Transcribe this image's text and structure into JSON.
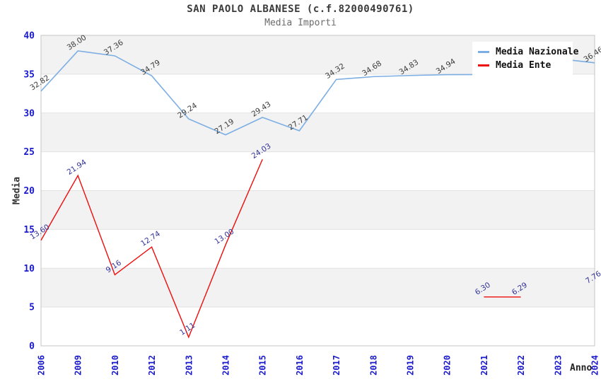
{
  "title": "SAN PAOLO ALBANESE (c.f.82000490761)",
  "subtitle": "Media Importi",
  "chart_data": {
    "type": "line",
    "title": "SAN PAOLO ALBANESE (c.f.82000490761)",
    "subtitle": "Media Importi",
    "xlabel": "Anno",
    "ylabel": "Media",
    "ylim": [
      0,
      40
    ],
    "yticks": [
      0,
      5,
      10,
      15,
      20,
      25,
      30,
      35,
      40
    ],
    "grid": "alternating-horizontal-bands",
    "legend_position": "top-right",
    "categories": [
      "2006",
      "2009",
      "2010",
      "2012",
      "2013",
      "2014",
      "2015",
      "2016",
      "2017",
      "2018",
      "2019",
      "2020",
      "2021",
      "2022",
      "2023",
      "2024"
    ],
    "series": [
      {
        "name": "Media Nazionale",
        "color": "#7caee3",
        "label_color": "#3c3c3c",
        "values": [
          32.82,
          38.0,
          37.36,
          34.79,
          29.24,
          27.19,
          29.43,
          27.71,
          34.32,
          34.68,
          34.83,
          34.94,
          34.95,
          35.0,
          37.0,
          36.46
        ],
        "point_labels": [
          "32.82",
          "38.00",
          "37.36",
          "34.79",
          "29.24",
          "27.19",
          "29.43",
          "27.71",
          "34.32",
          "34.68",
          "34.83",
          "34.94",
          "",
          "",
          "",
          "36.46"
        ]
      },
      {
        "name": "Media Ente",
        "color": "#ee0d0d",
        "label_color": "#333399",
        "values": [
          13.6,
          21.94,
          9.16,
          12.74,
          1.11,
          13.0,
          24.03,
          null,
          null,
          null,
          null,
          null,
          6.3,
          6.29,
          null,
          7.76
        ],
        "point_labels": [
          "13.60",
          "21.94",
          "9.16",
          "12.74",
          "1.11",
          "13.00",
          "24.03",
          "",
          "",
          "",
          "",
          "",
          "6.30",
          "6.29",
          "",
          "7.76"
        ]
      }
    ],
    "colors": {
      "tick_label": "#1a1acd",
      "band_gray": "#f2f2f2",
      "band_white": "#ffffff",
      "plot_border": "#c6c6c6",
      "grid_line": "#e2e2e2"
    }
  }
}
